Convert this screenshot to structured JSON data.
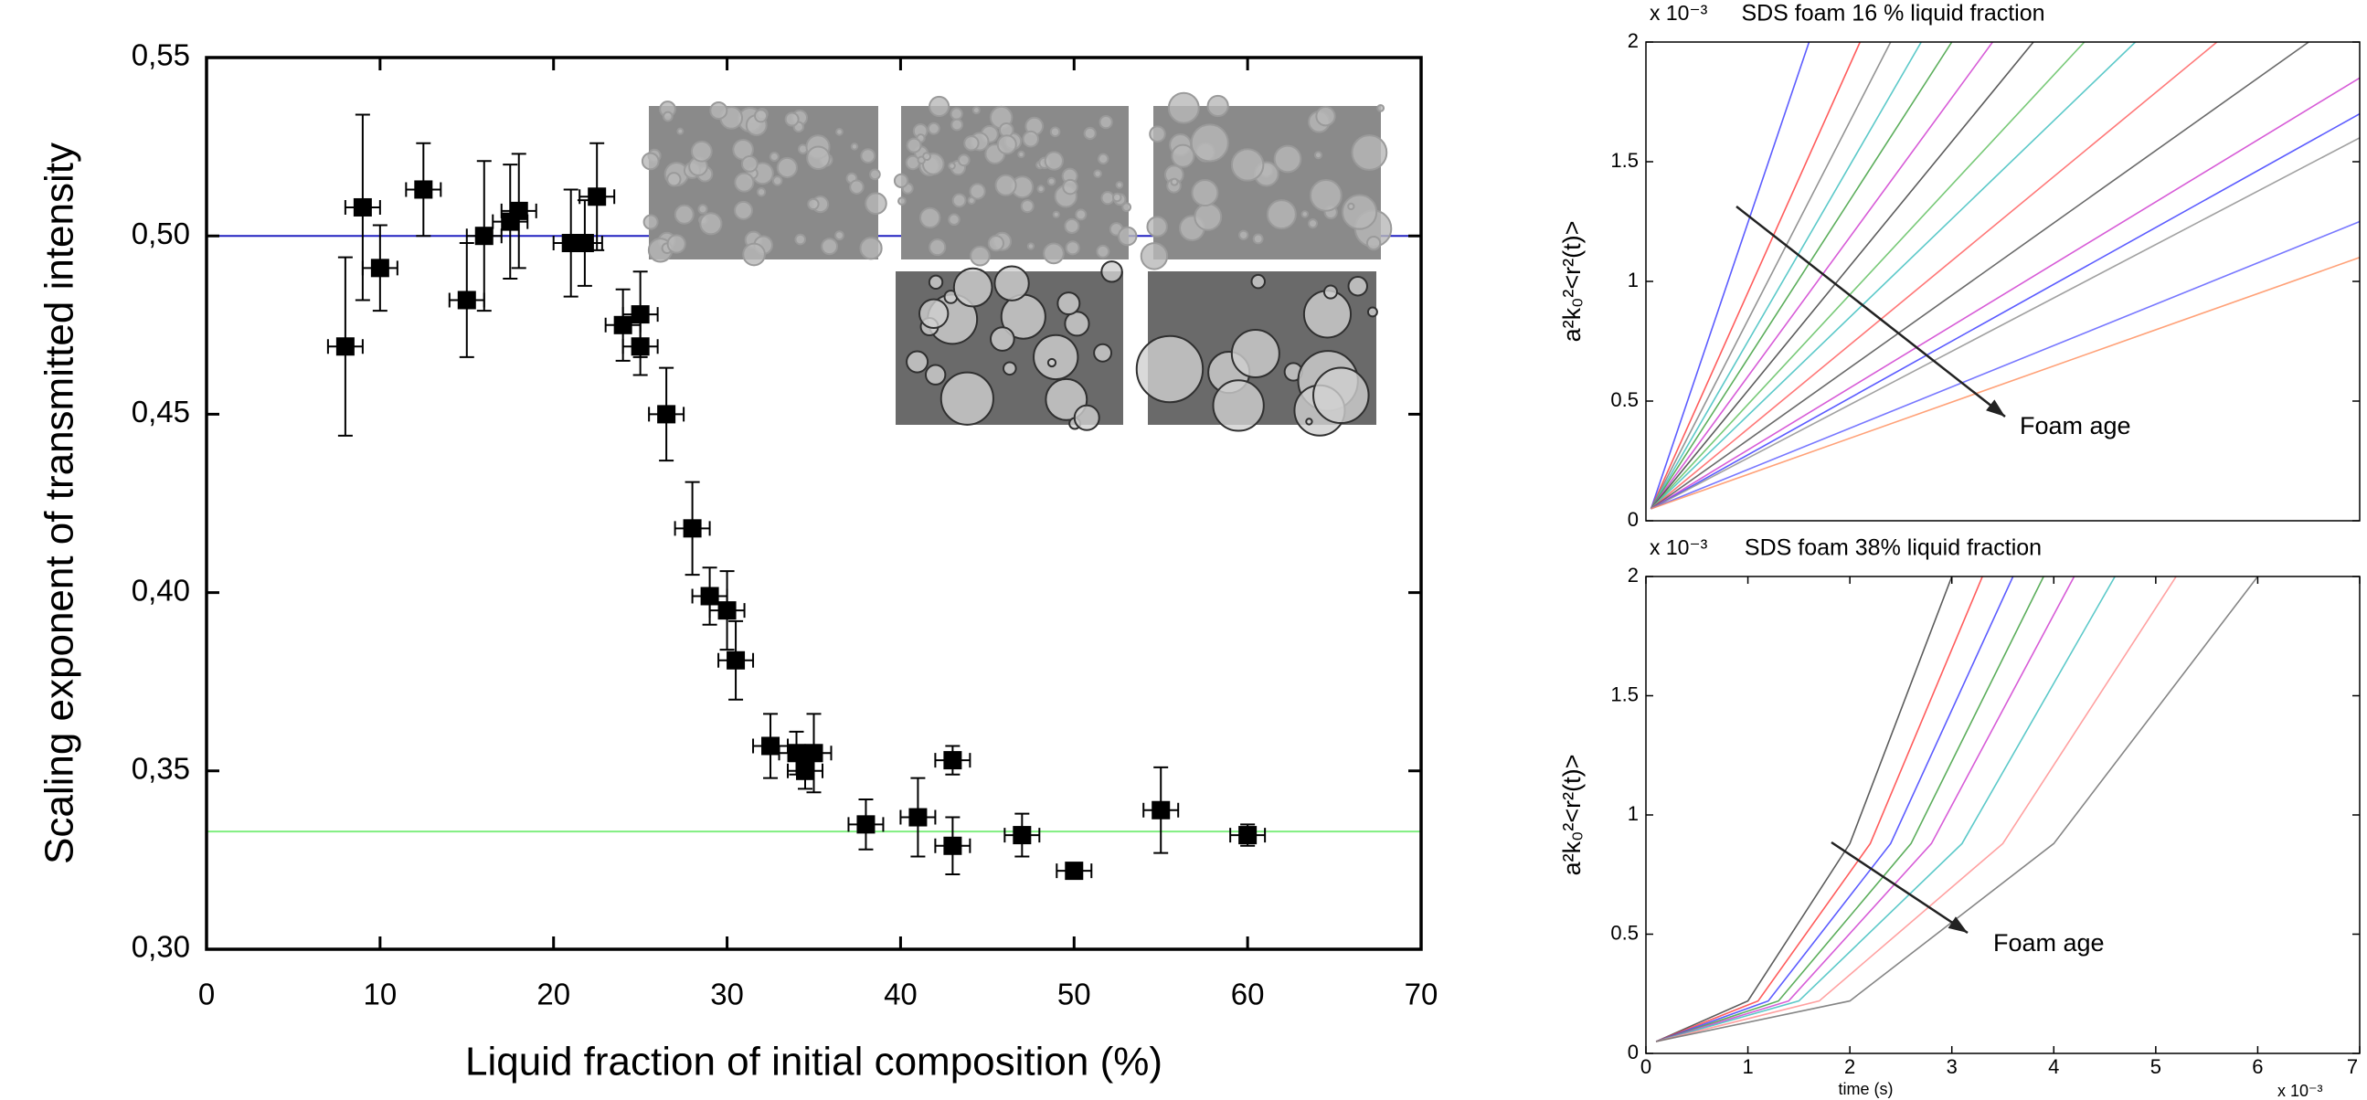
{
  "chart_data": [
    {
      "type": "scatter",
      "color": "#000000",
      "xlabel": "Liquid fraction of initial composition (%)",
      "ylabel": "Scaling exponent of transmitted intensity",
      "xlim": [
        0,
        70
      ],
      "ylim": [
        0.3,
        0.55
      ],
      "xticks": [
        0,
        10,
        20,
        30,
        40,
        50,
        60,
        70
      ],
      "yticks": [
        {
          "value": 0.3,
          "label": "0,30"
        },
        {
          "value": 0.35,
          "label": "0,35"
        },
        {
          "value": 0.4,
          "label": "0,40"
        },
        {
          "value": 0.45,
          "label": "0,45"
        },
        {
          "value": 0.5,
          "label": "0,50"
        },
        {
          "value": 0.55,
          "label": "0,55"
        }
      ],
      "x": [
        8,
        9,
        10,
        12.5,
        15,
        16,
        17.5,
        18,
        21,
        21.8,
        22.5,
        24,
        25,
        25,
        26.5,
        28,
        29,
        30,
        30.5,
        32.5,
        34,
        34.5,
        35,
        38,
        41,
        43,
        43,
        47,
        50,
        55,
        60
      ],
      "values": [
        0.469,
        0.508,
        0.491,
        0.513,
        0.482,
        0.5,
        0.504,
        0.507,
        0.498,
        0.498,
        0.511,
        0.475,
        0.478,
        0.469,
        0.45,
        0.418,
        0.399,
        0.395,
        0.381,
        0.357,
        0.355,
        0.35,
        0.355,
        0.335,
        0.337,
        0.353,
        0.329,
        0.332,
        0.322,
        0.339,
        0.332
      ],
      "xerr": [
        1,
        1,
        1,
        1,
        1,
        1,
        1,
        1,
        1,
        1,
        1,
        1,
        1,
        1,
        1,
        1,
        1,
        1,
        1,
        1,
        1,
        1,
        1,
        1,
        1,
        1,
        1,
        1,
        1,
        1,
        1
      ],
      "yerr": [
        0.025,
        0.026,
        0.012,
        0.013,
        0.016,
        0.021,
        0.016,
        0.016,
        0.015,
        0.012,
        0.015,
        0.01,
        0.012,
        0.008,
        0.013,
        0.013,
        0.008,
        0.011,
        0.011,
        0.009,
        0.006,
        0.005,
        0.011,
        0.007,
        0.011,
        0.004,
        0.008,
        0.006,
        0.002,
        0.012,
        0.003
      ],
      "reference_lines": [
        {
          "y": 0.5,
          "color": "#2020c0"
        },
        {
          "y": 0.333,
          "color": "#80ee80"
        }
      ]
    },
    {
      "type": "line",
      "title": "SDS foam 16 % liquid fraction",
      "ylabel": "a²k₀²<r²(t)>",
      "y_multiplier": "x 10⁻³",
      "annotation": "Foam age",
      "xlim": [
        0,
        7
      ],
      "ylim": [
        0,
        2
      ],
      "yticks": [
        0,
        0.5,
        1,
        1.5,
        2
      ],
      "series": [
        {
          "color": "#4040ff",
          "x": [
            0.05,
            1.6
          ],
          "values": [
            0.05,
            2
          ]
        },
        {
          "color": "#ff4040",
          "x": [
            0.05,
            2.1
          ],
          "values": [
            0.05,
            2
          ]
        },
        {
          "color": "#808080",
          "x": [
            0.05,
            2.4
          ],
          "values": [
            0.05,
            2
          ]
        },
        {
          "color": "#40c0c0",
          "x": [
            0.05,
            2.7
          ],
          "values": [
            0.05,
            2
          ]
        },
        {
          "color": "#40a040",
          "x": [
            0.05,
            3.0
          ],
          "values": [
            0.05,
            2
          ]
        },
        {
          "color": "#d040d0",
          "x": [
            0.05,
            3.4
          ],
          "values": [
            0.05,
            2
          ]
        },
        {
          "color": "#404040",
          "x": [
            0.05,
            3.8
          ],
          "values": [
            0.05,
            2
          ]
        },
        {
          "color": "#60c060",
          "x": [
            0.05,
            4.3
          ],
          "values": [
            0.05,
            2
          ]
        },
        {
          "color": "#40c0c0",
          "x": [
            0.05,
            4.8
          ],
          "values": [
            0.05,
            2
          ]
        },
        {
          "color": "#ff6060",
          "x": [
            0.05,
            5.6
          ],
          "values": [
            0.05,
            2
          ]
        },
        {
          "color": "#505050",
          "x": [
            0.05,
            6.5
          ],
          "values": [
            0.05,
            2
          ]
        },
        {
          "color": "#d040d0",
          "x": [
            0.05,
            7
          ],
          "values": [
            0.05,
            1.85
          ]
        },
        {
          "color": "#4040ff",
          "x": [
            0.05,
            7
          ],
          "values": [
            0.05,
            1.7
          ]
        },
        {
          "color": "#909090",
          "x": [
            0.05,
            7
          ],
          "values": [
            0.05,
            1.6
          ]
        },
        {
          "color": "#6060ff",
          "x": [
            0.05,
            7
          ],
          "values": [
            0.05,
            1.25
          ]
        },
        {
          "color": "#ff9060",
          "x": [
            0.05,
            7
          ],
          "values": [
            0.05,
            1.1
          ]
        }
      ]
    },
    {
      "type": "line",
      "title": "SDS foam 38% liquid fraction",
      "ylabel": "a²k₀²<r²(t)>",
      "y_multiplier": "x 10⁻³",
      "annotation": "Foam age",
      "xlabel": "time (s)",
      "x_multiplier": "x 10⁻³",
      "xlim": [
        0,
        7
      ],
      "ylim": [
        0,
        2
      ],
      "xticks": [
        0,
        1,
        2,
        3,
        4,
        5,
        6,
        7
      ],
      "yticks": [
        0,
        0.5,
        1,
        1.5,
        2
      ],
      "series": [
        {
          "color": "#404040",
          "x": [
            0.1,
            1.0,
            2.0,
            3.0
          ],
          "values": [
            0.05,
            0.22,
            0.88,
            2
          ]
        },
        {
          "color": "#ff4040",
          "x": [
            0.1,
            1.1,
            2.2,
            3.3
          ],
          "values": [
            0.05,
            0.22,
            0.88,
            2
          ]
        },
        {
          "color": "#4040ff",
          "x": [
            0.1,
            1.2,
            2.4,
            3.6
          ],
          "values": [
            0.05,
            0.22,
            0.88,
            2
          ]
        },
        {
          "color": "#40a040",
          "x": [
            0.1,
            1.3,
            2.6,
            3.9
          ],
          "values": [
            0.05,
            0.22,
            0.88,
            2
          ]
        },
        {
          "color": "#d040d0",
          "x": [
            0.1,
            1.4,
            2.8,
            4.2
          ],
          "values": [
            0.05,
            0.22,
            0.88,
            2
          ]
        },
        {
          "color": "#40c0c0",
          "x": [
            0.1,
            1.5,
            3.1,
            4.6
          ],
          "values": [
            0.05,
            0.22,
            0.88,
            2
          ]
        },
        {
          "color": "#ff9090",
          "x": [
            0.1,
            1.7,
            3.5,
            5.2
          ],
          "values": [
            0.05,
            0.22,
            0.88,
            2
          ]
        },
        {
          "color": "#707070",
          "x": [
            0.1,
            2.0,
            4.0,
            6.0
          ],
          "values": [
            0.05,
            0.22,
            0.88,
            2
          ]
        }
      ]
    }
  ]
}
